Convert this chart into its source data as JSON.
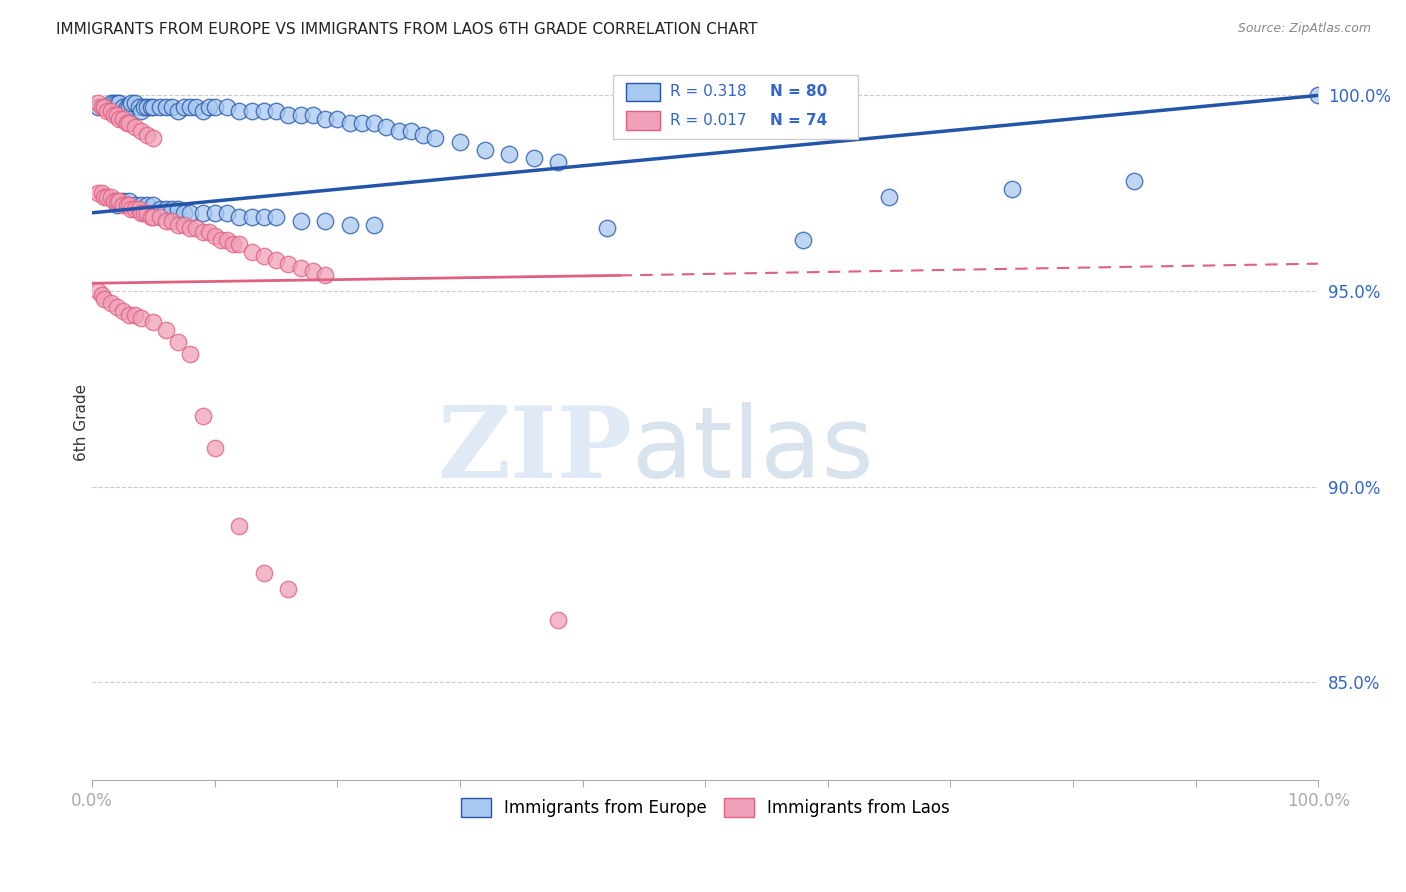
{
  "title": "IMMIGRANTS FROM EUROPE VS IMMIGRANTS FROM LAOS 6TH GRADE CORRELATION CHART",
  "source": "Source: ZipAtlas.com",
  "ylabel": "6th Grade",
  "xlim": [
    0.0,
    1.0
  ],
  "ylim": [
    0.825,
    1.008
  ],
  "yticks": [
    0.85,
    0.9,
    0.95,
    1.0
  ],
  "ytick_labels": [
    "85.0%",
    "90.0%",
    "95.0%",
    "100.0%"
  ],
  "blue_color": "#A8C8F0",
  "pink_color": "#F0A0B8",
  "blue_line_color": "#2255AA",
  "pink_line_color": "#E06080",
  "blue_trend": [
    0.97,
    1.0
  ],
  "pink_trend_solid": [
    0.952,
    0.955
  ],
  "pink_trend_dashed": [
    0.955,
    0.96
  ],
  "blue_scatter_x": [
    0.005,
    0.01,
    0.015,
    0.018,
    0.02,
    0.022,
    0.025,
    0.028,
    0.03,
    0.032,
    0.035,
    0.038,
    0.04,
    0.042,
    0.045,
    0.048,
    0.05,
    0.055,
    0.06,
    0.065,
    0.07,
    0.075,
    0.08,
    0.085,
    0.09,
    0.095,
    0.1,
    0.11,
    0.12,
    0.13,
    0.14,
    0.15,
    0.16,
    0.17,
    0.18,
    0.19,
    0.2,
    0.21,
    0.22,
    0.23,
    0.24,
    0.25,
    0.26,
    0.27,
    0.28,
    0.3,
    0.32,
    0.34,
    0.36,
    0.38,
    0.02,
    0.025,
    0.03,
    0.035,
    0.04,
    0.045,
    0.05,
    0.055,
    0.06,
    0.065,
    0.07,
    0.075,
    0.08,
    0.09,
    0.1,
    0.11,
    0.12,
    0.13,
    0.14,
    0.15,
    0.17,
    0.19,
    0.21,
    0.23,
    0.42,
    0.58,
    0.65,
    0.75,
    0.85,
    1.0
  ],
  "blue_scatter_y": [
    0.997,
    0.997,
    0.998,
    0.998,
    0.998,
    0.998,
    0.997,
    0.997,
    0.997,
    0.998,
    0.998,
    0.997,
    0.996,
    0.997,
    0.997,
    0.997,
    0.997,
    0.997,
    0.997,
    0.997,
    0.996,
    0.997,
    0.997,
    0.997,
    0.996,
    0.997,
    0.997,
    0.997,
    0.996,
    0.996,
    0.996,
    0.996,
    0.995,
    0.995,
    0.995,
    0.994,
    0.994,
    0.993,
    0.993,
    0.993,
    0.992,
    0.991,
    0.991,
    0.99,
    0.989,
    0.988,
    0.986,
    0.985,
    0.984,
    0.983,
    0.972,
    0.973,
    0.973,
    0.972,
    0.972,
    0.972,
    0.972,
    0.971,
    0.971,
    0.971,
    0.971,
    0.97,
    0.97,
    0.97,
    0.97,
    0.97,
    0.969,
    0.969,
    0.969,
    0.969,
    0.968,
    0.968,
    0.967,
    0.967,
    0.966,
    0.963,
    0.974,
    0.976,
    0.978,
    1.0
  ],
  "pink_scatter_x": [
    0.005,
    0.008,
    0.01,
    0.012,
    0.015,
    0.018,
    0.02,
    0.022,
    0.025,
    0.028,
    0.03,
    0.032,
    0.035,
    0.038,
    0.04,
    0.042,
    0.045,
    0.048,
    0.05,
    0.055,
    0.06,
    0.065,
    0.07,
    0.075,
    0.08,
    0.085,
    0.09,
    0.095,
    0.1,
    0.105,
    0.11,
    0.115,
    0.12,
    0.13,
    0.14,
    0.15,
    0.16,
    0.17,
    0.18,
    0.19,
    0.005,
    0.008,
    0.01,
    0.012,
    0.015,
    0.018,
    0.02,
    0.022,
    0.025,
    0.028,
    0.03,
    0.035,
    0.04,
    0.045,
    0.05,
    0.005,
    0.008,
    0.01,
    0.015,
    0.02,
    0.025,
    0.03,
    0.035,
    0.04,
    0.05,
    0.06,
    0.07,
    0.08,
    0.09,
    0.1,
    0.12,
    0.14,
    0.16,
    0.38
  ],
  "pink_scatter_y": [
    0.975,
    0.975,
    0.974,
    0.974,
    0.974,
    0.973,
    0.973,
    0.973,
    0.972,
    0.972,
    0.972,
    0.971,
    0.971,
    0.971,
    0.97,
    0.97,
    0.97,
    0.969,
    0.969,
    0.969,
    0.968,
    0.968,
    0.967,
    0.967,
    0.966,
    0.966,
    0.965,
    0.965,
    0.964,
    0.963,
    0.963,
    0.962,
    0.962,
    0.96,
    0.959,
    0.958,
    0.957,
    0.956,
    0.955,
    0.954,
    0.998,
    0.997,
    0.997,
    0.996,
    0.996,
    0.995,
    0.995,
    0.994,
    0.994,
    0.993,
    0.993,
    0.992,
    0.991,
    0.99,
    0.989,
    0.95,
    0.949,
    0.948,
    0.947,
    0.946,
    0.945,
    0.944,
    0.944,
    0.943,
    0.942,
    0.94,
    0.937,
    0.934,
    0.918,
    0.91,
    0.89,
    0.878,
    0.874,
    0.866
  ]
}
